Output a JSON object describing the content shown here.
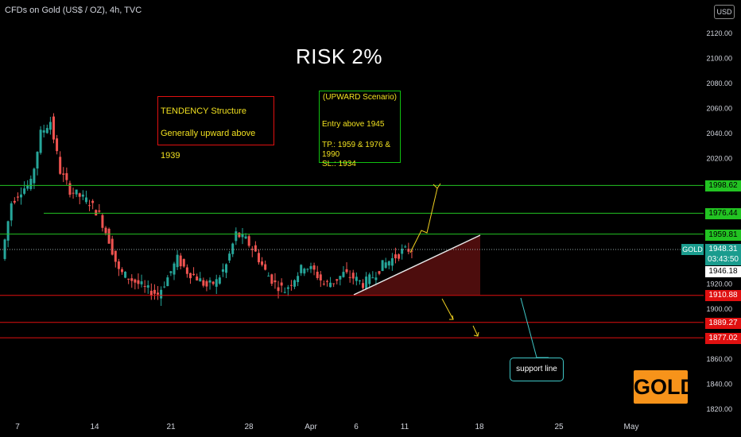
{
  "header": {
    "title": "CFDs on Gold (US$ / OZ), 4h, TVC"
  },
  "currency": "USD",
  "annotations": {
    "risk": "RISK 2%",
    "tendency_title": "TENDENCY  Structure",
    "tendency_text": "Generally upward above 1939",
    "scenario_title": "(UPWARD Scenario)",
    "scenario_entry": "Entry above 1945",
    "scenario_tp": "TP.: 1959 & 1976 & 1990",
    "scenario_sl": "SL.: 1934",
    "support_label": "support line",
    "logo": "GOLD"
  },
  "colors": {
    "background": "#000000",
    "up": "#26a69a",
    "down": "#ef5350",
    "resistance": "#22c322",
    "support": "#e01010",
    "logo": "#f7931a"
  },
  "price_tags": {
    "symbol": "GOLD",
    "current": "1948.31",
    "countdown": "03:43:50",
    "prev": "1946.18",
    "level_1998": "1998.62",
    "level_1976": "1976.44",
    "level_1959": "1959.81",
    "level_1910": "1910.88",
    "level_1889": "1889.27",
    "level_1877": "1877.02"
  },
  "chart_data": {
    "type": "candlestick",
    "title": "CFDs on Gold (US$ / OZ), 4h, TVC",
    "x_ticks": [
      "7",
      "14",
      "21",
      "28",
      "Apr",
      "6",
      "11",
      "18",
      "25",
      "May"
    ],
    "y_ticks": [
      2120,
      2100,
      2080,
      2060,
      2040,
      2020,
      1920,
      1900,
      1860,
      1840,
      1820
    ],
    "ylim": [
      1812,
      2132
    ],
    "close_series_approx": [
      1940,
      1985,
      1995,
      2000,
      2040,
      2050,
      2010,
      1995,
      1990,
      1985,
      1975,
      1955,
      1930,
      1925,
      1920,
      1915,
      1912,
      1925,
      1940,
      1930,
      1925,
      1918,
      1922,
      1935,
      1960,
      1955,
      1945,
      1930,
      1920,
      1915,
      1925,
      1935,
      1930,
      1920,
      1922,
      1928,
      1925,
      1920,
      1926,
      1935,
      1940,
      1946,
      1948
    ],
    "horizontal_levels": [
      {
        "value": 1998.62,
        "color": "resistance"
      },
      {
        "value": 1976.44,
        "color": "resistance"
      },
      {
        "value": 1959.81,
        "color": "resistance"
      },
      {
        "value": 1910.88,
        "color": "support"
      },
      {
        "value": 1889.27,
        "color": "support"
      },
      {
        "value": 1877.02,
        "color": "support"
      }
    ]
  }
}
